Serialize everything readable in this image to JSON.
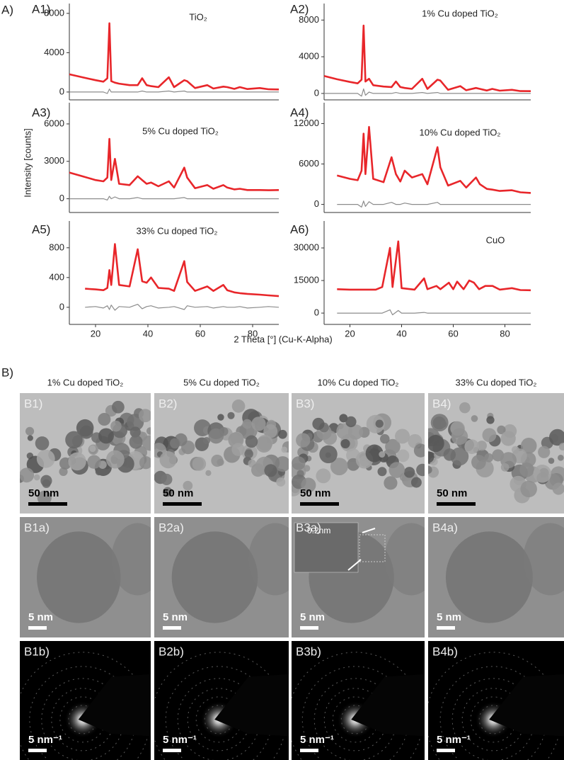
{
  "panel_a_label": "A)",
  "y_axis_label": "Intensity [counts]",
  "x_axis_label": "2 Theta [°] (Cu-K-Alpha)",
  "chart_data": [
    {
      "type": "line",
      "label": "A1)",
      "title": "TiO₂",
      "xlim": [
        10,
        90
      ],
      "ylim": [
        -800,
        9000
      ],
      "yticks": [
        0,
        4000,
        8000
      ],
      "x": [
        10,
        15,
        20,
        23,
        24.5,
        25.3,
        26,
        27.4,
        29,
        33,
        36.1,
        37.8,
        39.5,
        41.2,
        44,
        48,
        50,
        53.9,
        55,
        58,
        62.7,
        65,
        68.8,
        70.3,
        73,
        75.1,
        78,
        82.7,
        86,
        90
      ],
      "series": [
        {
          "color": "#e8262a",
          "values": [
            1800,
            1500,
            1200,
            1050,
            1400,
            7000,
            1100,
            950,
            850,
            700,
            700,
            1400,
            700,
            600,
            500,
            1500,
            500,
            1200,
            1100,
            400,
            700,
            350,
            550,
            500,
            320,
            500,
            300,
            400,
            280,
            260
          ]
        },
        {
          "color": "#8c8c8c",
          "values": [
            0,
            0,
            0,
            0,
            -150,
            300,
            0,
            0,
            0,
            0,
            0,
            100,
            0,
            0,
            0,
            100,
            0,
            100,
            0,
            0,
            0,
            0,
            0,
            0,
            0,
            0,
            0,
            0,
            0,
            0
          ]
        }
      ]
    },
    {
      "type": "line",
      "label": "A2)",
      "title": "1% Cu doped TiO₂",
      "xlim": [
        10,
        90
      ],
      "ylim": [
        -700,
        9800
      ],
      "yticks": [
        0,
        4000,
        8000
      ],
      "x": [
        10,
        15,
        20,
        23,
        24.5,
        25.3,
        26,
        27.4,
        29,
        33,
        36.1,
        37.8,
        39.5,
        41.2,
        44,
        48,
        50,
        53.9,
        55,
        58,
        62.7,
        65,
        68.8,
        70.3,
        73,
        75.1,
        78,
        82.7,
        86,
        90
      ],
      "series": [
        {
          "color": "#e8262a",
          "values": [
            1900,
            1550,
            1250,
            1100,
            1500,
            7400,
            1300,
            1600,
            900,
            750,
            700,
            1300,
            700,
            600,
            500,
            1600,
            500,
            1500,
            1400,
            400,
            800,
            350,
            600,
            500,
            320,
            500,
            300,
            400,
            260,
            250
          ]
        },
        {
          "color": "#8c8c8c",
          "values": [
            0,
            0,
            0,
            0,
            -300,
            500,
            -200,
            150,
            0,
            0,
            0,
            100,
            0,
            0,
            0,
            100,
            0,
            100,
            0,
            0,
            0,
            0,
            0,
            0,
            0,
            0,
            0,
            0,
            0,
            0
          ]
        }
      ]
    },
    {
      "type": "line",
      "label": "A3)",
      "title": "5% Cu doped TiO₂",
      "xlim": [
        10,
        90
      ],
      "ylim": [
        -1100,
        7700
      ],
      "yticks": [
        0,
        3000,
        6000
      ],
      "x": [
        10,
        15,
        20,
        23,
        24.5,
        25.3,
        26,
        27.4,
        29,
        33,
        36.1,
        37.8,
        39.5,
        41.2,
        44,
        48,
        50,
        53.9,
        55,
        58,
        62.7,
        65,
        68.8,
        70.3,
        73,
        75.1,
        78,
        82.7,
        86,
        90
      ],
      "series": [
        {
          "color": "#e8262a",
          "values": [
            2100,
            1800,
            1500,
            1400,
            1700,
            4800,
            1500,
            3200,
            1200,
            1100,
            1800,
            1500,
            1200,
            1300,
            1000,
            1400,
            900,
            2500,
            1700,
            850,
            1100,
            800,
            1100,
            900,
            750,
            800,
            700,
            700,
            680,
            700
          ]
        },
        {
          "color": "#8c8c8c",
          "values": [
            0,
            0,
            0,
            0,
            -100,
            200,
            0,
            150,
            0,
            0,
            100,
            0,
            0,
            0,
            0,
            0,
            0,
            100,
            0,
            0,
            0,
            0,
            0,
            0,
            0,
            0,
            0,
            0,
            0,
            0
          ]
        }
      ]
    },
    {
      "type": "line",
      "label": "A4)",
      "title": "10% Cu doped TiO₂",
      "xlim": [
        10,
        90
      ],
      "ylim": [
        -1200,
        15100
      ],
      "yticks": [
        0,
        6000,
        12000
      ],
      "x": [
        15,
        20,
        23,
        24.5,
        25.3,
        26,
        27.4,
        29,
        33,
        36.1,
        37.8,
        39.5,
        41.2,
        44,
        48,
        50,
        53.9,
        55,
        58,
        62.7,
        65,
        68.8,
        70.3,
        73,
        75.1,
        78,
        82.7,
        86,
        90
      ],
      "series": [
        {
          "color": "#e8262a",
          "values": [
            4300,
            3800,
            3600,
            5000,
            10500,
            4500,
            11500,
            3800,
            3300,
            7000,
            4500,
            3400,
            5000,
            4000,
            4500,
            3000,
            8500,
            5500,
            2800,
            3500,
            2500,
            4000,
            3000,
            2300,
            2200,
            2000,
            2100,
            1800,
            1700
          ]
        },
        {
          "color": "#8c8c8c",
          "values": [
            0,
            0,
            0,
            -400,
            500,
            -300,
            400,
            0,
            0,
            300,
            0,
            0,
            200,
            0,
            0,
            0,
            300,
            0,
            0,
            0,
            0,
            0,
            0,
            0,
            0,
            0,
            0,
            0,
            0
          ]
        }
      ]
    },
    {
      "type": "line",
      "label": "A5)",
      "title": "33% Cu doped TiO₂",
      "xlim": [
        10,
        90
      ],
      "ylim": [
        -230,
        1160
      ],
      "yticks": [
        0,
        400,
        800
      ],
      "xticks": [
        20,
        40,
        60,
        80
      ],
      "x": [
        16,
        20,
        23,
        24.5,
        25.3,
        26,
        27.4,
        29,
        33,
        36.1,
        37.8,
        39.5,
        41.2,
        44,
        48,
        50,
        53.9,
        55,
        58,
        62.7,
        65,
        68.8,
        70.3,
        73,
        75.1,
        78,
        82.7,
        86,
        90
      ],
      "series": [
        {
          "color": "#e8262a",
          "values": [
            250,
            240,
            230,
            260,
            500,
            300,
            850,
            300,
            280,
            780,
            350,
            330,
            400,
            260,
            250,
            220,
            620,
            340,
            220,
            280,
            220,
            300,
            230,
            200,
            190,
            180,
            170,
            160,
            150
          ]
        },
        {
          "color": "#8c8c8c",
          "values": [
            0,
            10,
            -10,
            20,
            -30,
            30,
            -40,
            10,
            0,
            40,
            -20,
            10,
            20,
            -10,
            0,
            10,
            -30,
            20,
            0,
            10,
            -10,
            10,
            0,
            0,
            10,
            -10,
            0,
            10,
            0
          ]
        }
      ]
    },
    {
      "type": "line",
      "label": "A6)",
      "title": "CuO",
      "xlim": [
        10,
        90
      ],
      "ylim": [
        -5200,
        42400
      ],
      "yticks": [
        0,
        15000,
        30000
      ],
      "xticks": [
        20,
        40,
        60,
        80
      ],
      "x": [
        15,
        20,
        25,
        30,
        32.5,
        35.5,
        36.5,
        38.7,
        40,
        45,
        48.7,
        50,
        53.5,
        55,
        58.3,
        60,
        61.5,
        64,
        66.2,
        68,
        70,
        72.4,
        75.2,
        78,
        82.7,
        86,
        90
      ],
      "series": [
        {
          "color": "#e8262a",
          "values": [
            11000,
            10800,
            10800,
            10800,
            12000,
            30000,
            12000,
            33000,
            11500,
            10800,
            16000,
            11000,
            12500,
            11000,
            14000,
            11000,
            14500,
            11000,
            15000,
            14000,
            11000,
            12500,
            12500,
            10800,
            11500,
            10600,
            10500
          ]
        },
        {
          "color": "#8c8c8c",
          "values": [
            0,
            0,
            0,
            0,
            0,
            1500,
            -800,
            1200,
            0,
            0,
            300,
            0,
            0,
            0,
            0,
            0,
            0,
            0,
            0,
            0,
            0,
            0,
            0,
            0,
            0,
            0,
            0
          ]
        }
      ]
    }
  ],
  "panel_b": {
    "label": "B)",
    "inset_label": "0.2nm",
    "columns": [
      {
        "header": "1% Cu doped TiO₂",
        "panels": [
          {
            "label": "B1)",
            "scale": "50 nm"
          },
          {
            "label": "B1a)",
            "scale": "5 nm"
          },
          {
            "label": "B1b)",
            "scale": "5 nm⁻¹"
          }
        ]
      },
      {
        "header": "5% Cu doped TiO₂",
        "panels": [
          {
            "label": "B2)",
            "scale": "50 nm"
          },
          {
            "label": "B2a)",
            "scale": "5 nm"
          },
          {
            "label": "B2b)",
            "scale": "5 nm⁻¹"
          }
        ]
      },
      {
        "header": "10% Cu doped TiO₂",
        "panels": [
          {
            "label": "B3)",
            "scale": "50 nm"
          },
          {
            "label": "B3a)",
            "scale": "5 nm"
          },
          {
            "label": "B3b)",
            "scale": "5 nm⁻¹"
          }
        ]
      },
      {
        "header": "33% Cu doped TiO₂",
        "panels": [
          {
            "label": "B4)",
            "scale": "50 nm"
          },
          {
            "label": "B4a)",
            "scale": "5 nm"
          },
          {
            "label": "B4b)",
            "scale": "5 nm⁻¹"
          }
        ]
      }
    ]
  }
}
